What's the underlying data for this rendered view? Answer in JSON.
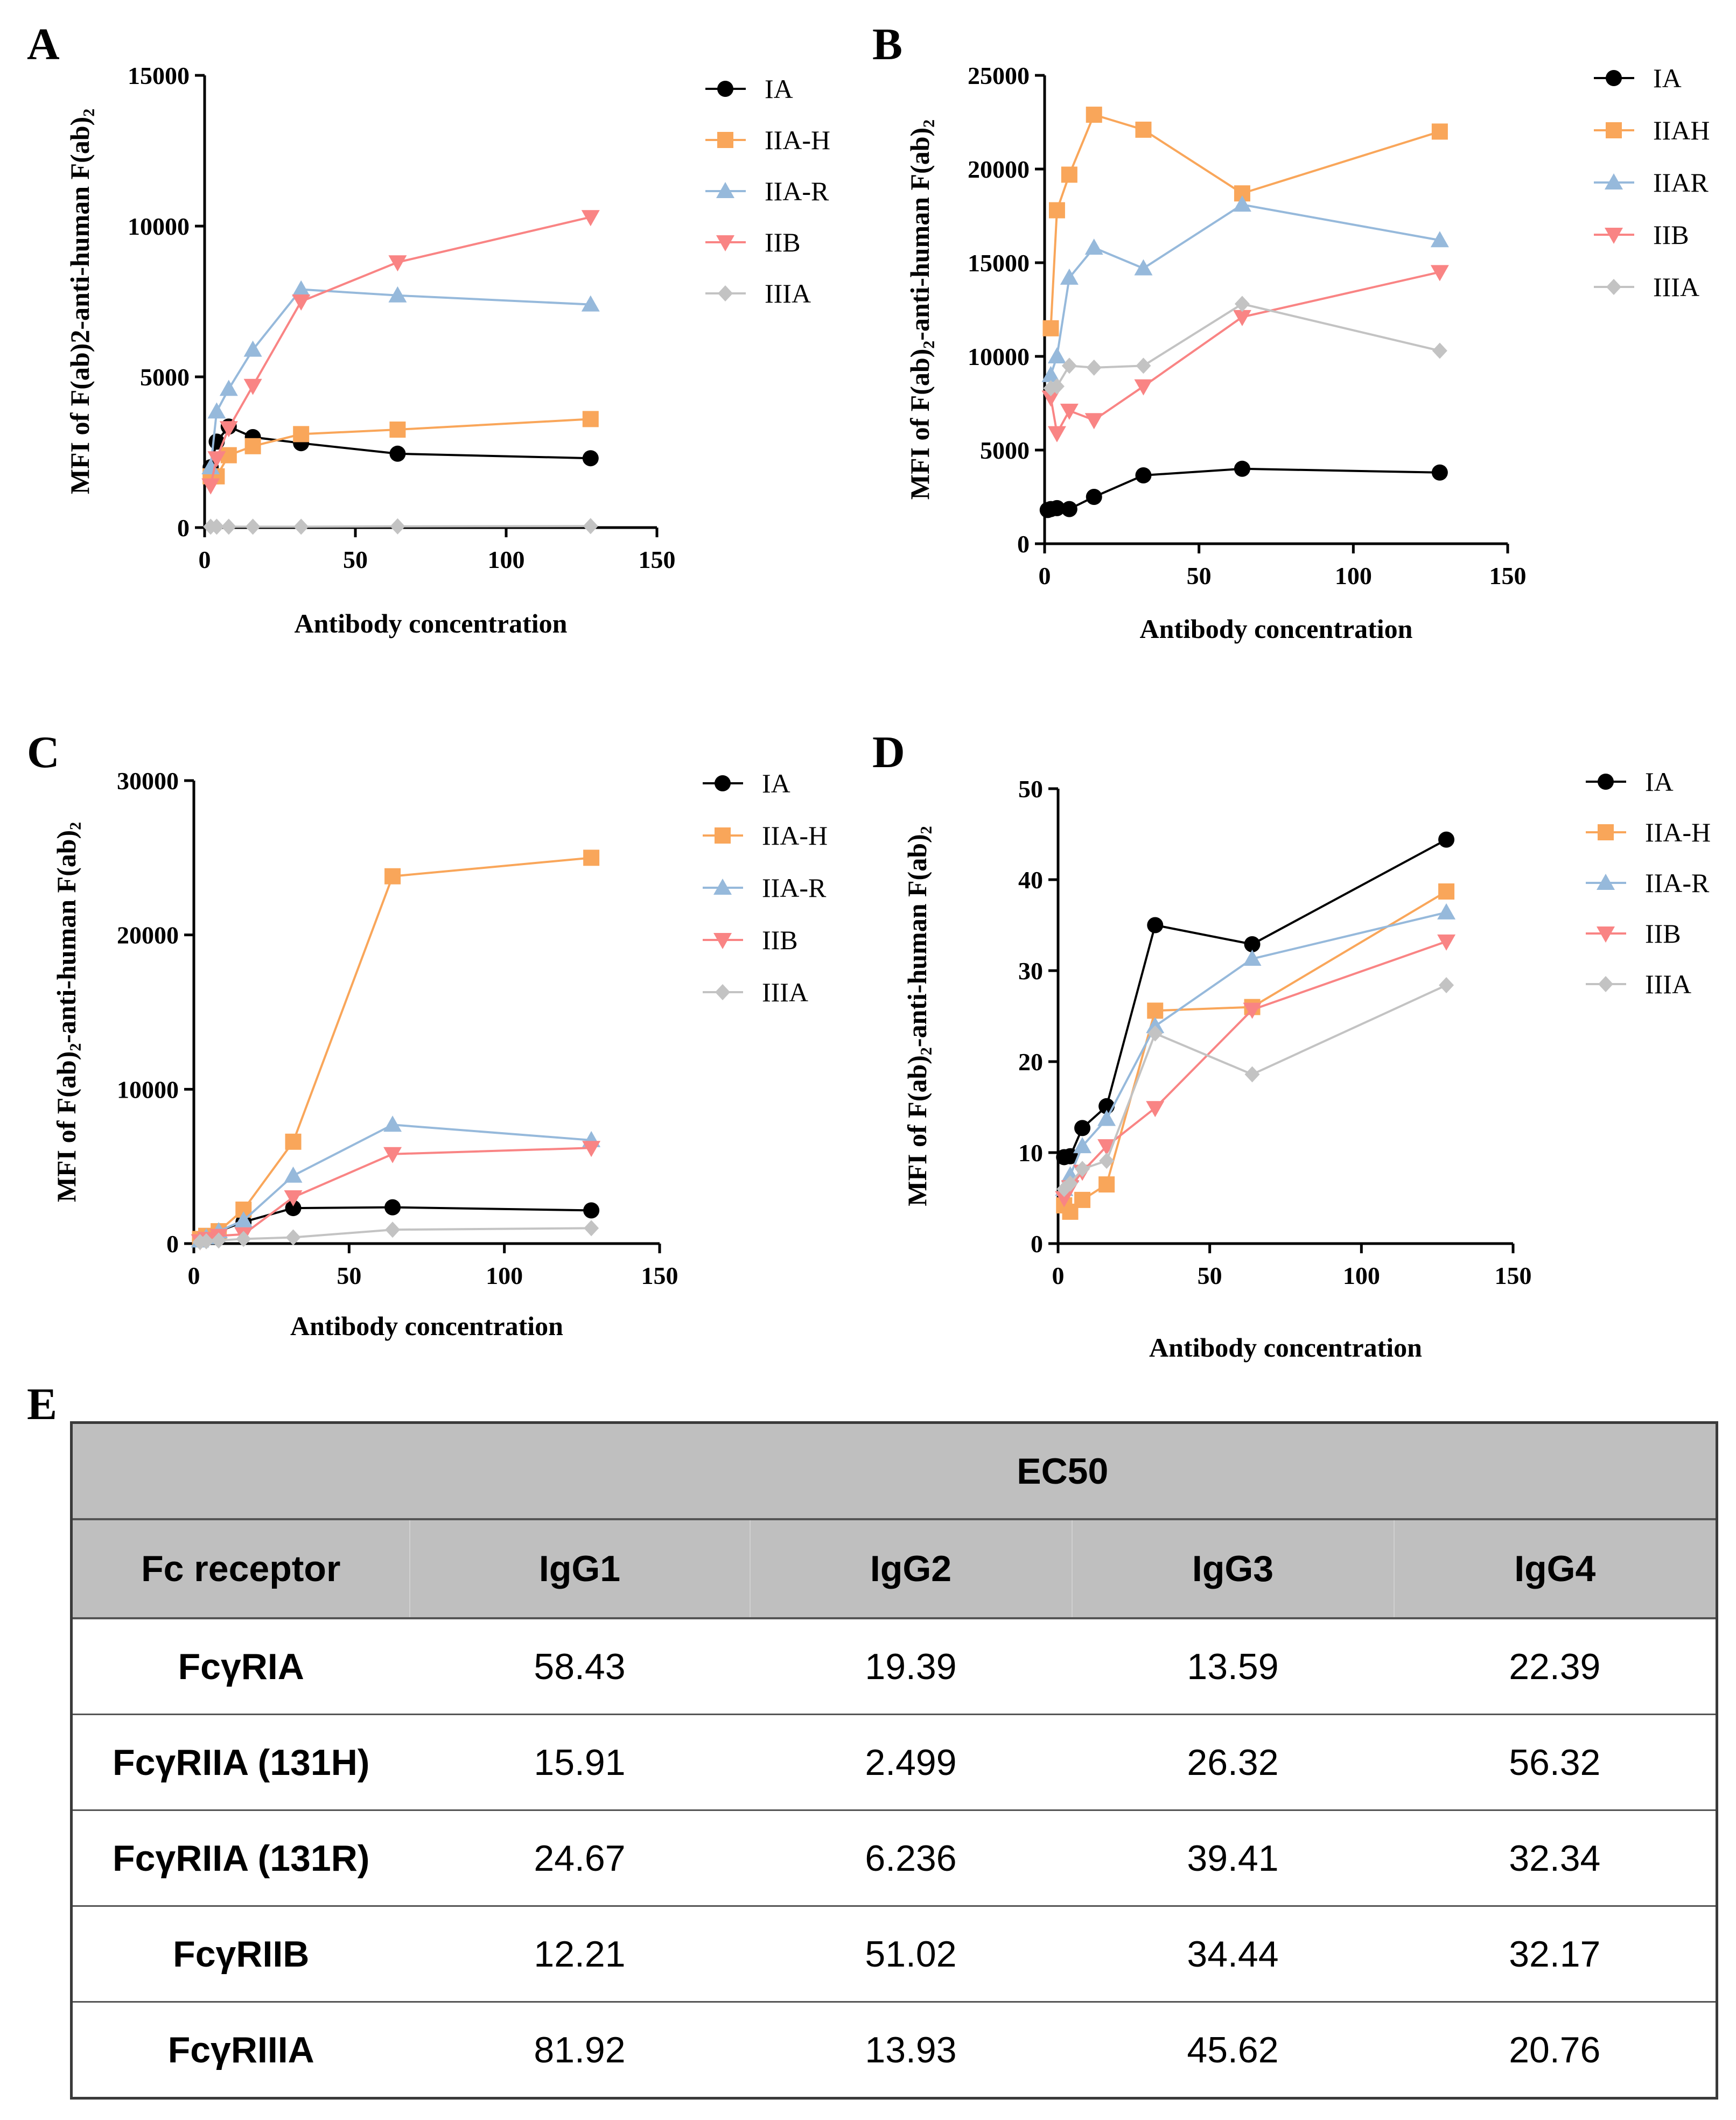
{
  "chart_data": [
    {
      "type": "line",
      "panel": "A",
      "title": "",
      "xlabel": "Antibody concentration",
      "ylabel": "MFI of F(ab)2-anti-human F(ab)₂",
      "xlim": [
        0,
        150
      ],
      "ylim": [
        0,
        15000
      ],
      "xticks": [
        0,
        50,
        100,
        150
      ],
      "yticks": [
        0,
        5000,
        10000,
        15000
      ],
      "legend_position": "top-right",
      "series": [
        {
          "name": "IA",
          "color": "#000000",
          "marker": "circle",
          "x": [
            2,
            4,
            8,
            16,
            32,
            64,
            128
          ],
          "y": [
            2000,
            2850,
            3350,
            3000,
            2800,
            2450,
            2300
          ]
        },
        {
          "name": "IIA-H",
          "color": "#f9a65a",
          "marker": "square",
          "x": [
            2,
            4,
            8,
            16,
            32,
            64,
            128
          ],
          "y": [
            1700,
            1700,
            2400,
            2700,
            3100,
            3250,
            3600
          ]
        },
        {
          "name": "IIA-R",
          "color": "#96b9db",
          "marker": "triangle-up",
          "x": [
            2,
            4,
            8,
            16,
            32,
            64,
            128
          ],
          "y": [
            2000,
            3850,
            4600,
            5900,
            7900,
            7700,
            7400
          ]
        },
        {
          "name": "IIB",
          "color": "#f98484",
          "marker": "triangle-down",
          "x": [
            2,
            4,
            8,
            16,
            32,
            64,
            128
          ],
          "y": [
            1400,
            2300,
            3300,
            4700,
            7500,
            8800,
            10300
          ]
        },
        {
          "name": "IIIA",
          "color": "#c3c3c3",
          "marker": "diamond",
          "x": [
            2,
            4,
            8,
            16,
            32,
            64,
            128
          ],
          "y": [
            30,
            30,
            30,
            30,
            30,
            40,
            50
          ]
        }
      ]
    },
    {
      "type": "line",
      "panel": "B",
      "title": "",
      "xlabel": "Antibody concentration",
      "ylabel": "MFI of F(ab)₂-anti-human F(ab)₂",
      "xlim": [
        0,
        150
      ],
      "ylim": [
        0,
        25000
      ],
      "xticks": [
        0,
        50,
        100,
        150
      ],
      "yticks": [
        0,
        5000,
        10000,
        15000,
        20000,
        25000
      ],
      "legend_position": "top-right",
      "series": [
        {
          "name": "IA",
          "color": "#000000",
          "marker": "circle",
          "x": [
            1,
            2,
            4,
            8,
            16,
            32,
            64,
            128
          ],
          "y": [
            1800,
            1850,
            1900,
            1850,
            2500,
            3650,
            4000,
            3800
          ]
        },
        {
          "name": "IIAH",
          "color": "#f9a65a",
          "marker": "square",
          "x": [
            2,
            4,
            8,
            16,
            32,
            64,
            128
          ],
          "y": [
            11500,
            17800,
            19700,
            22900,
            22100,
            18700,
            22000
          ]
        },
        {
          "name": "IIAR",
          "color": "#96b9db",
          "marker": "triangle-up",
          "x": [
            2,
            4,
            8,
            16,
            32,
            64,
            128
          ],
          "y": [
            9000,
            10000,
            14200,
            15800,
            14700,
            18100,
            16200
          ]
        },
        {
          "name": "IIB",
          "color": "#f98484",
          "marker": "triangle-down",
          "x": [
            2,
            4,
            8,
            16,
            32,
            64,
            128
          ],
          "y": [
            7800,
            5900,
            7100,
            6600,
            8400,
            12100,
            14500
          ]
        },
        {
          "name": "IIIA",
          "color": "#c3c3c3",
          "marker": "diamond",
          "x": [
            2,
            4,
            8,
            16,
            32,
            64,
            128
          ],
          "y": [
            8300,
            8400,
            9500,
            9400,
            9500,
            12800,
            10300
          ]
        }
      ]
    },
    {
      "type": "line",
      "panel": "C",
      "title": "",
      "xlabel": "Antibody concentration",
      "ylabel": "MFI of F(ab)₂-anti-human F(ab)₂",
      "xlim": [
        0,
        150
      ],
      "ylim": [
        0,
        30000
      ],
      "xticks": [
        0,
        50,
        100,
        150
      ],
      "yticks": [
        0,
        10000,
        20000,
        30000
      ],
      "legend_position": "top-right",
      "series": [
        {
          "name": "IA",
          "color": "#000000",
          "marker": "circle",
          "x": [
            2,
            4,
            8,
            16,
            32,
            64,
            128
          ],
          "y": [
            250,
            450,
            800,
            1400,
            2300,
            2350,
            2150
          ]
        },
        {
          "name": "IIA-H",
          "color": "#f9a65a",
          "marker": "square",
          "x": [
            2,
            4,
            8,
            16,
            32,
            64,
            128
          ],
          "y": [
            300,
            500,
            800,
            2200,
            6600,
            23800,
            25000
          ]
        },
        {
          "name": "IIA-R",
          "color": "#96b9db",
          "marker": "triangle-up",
          "x": [
            2,
            4,
            8,
            16,
            32,
            64,
            128
          ],
          "y": [
            200,
            400,
            800,
            1500,
            4400,
            7700,
            6700
          ]
        },
        {
          "name": "IIB",
          "color": "#f98484",
          "marker": "triangle-down",
          "x": [
            2,
            4,
            8,
            16,
            32,
            64,
            128
          ],
          "y": [
            150,
            300,
            500,
            600,
            3000,
            5800,
            6200
          ]
        },
        {
          "name": "IIIA",
          "color": "#c3c3c3",
          "marker": "diamond",
          "x": [
            2,
            4,
            8,
            16,
            32,
            64,
            128
          ],
          "y": [
            100,
            150,
            200,
            300,
            400,
            900,
            1000
          ]
        }
      ]
    },
    {
      "type": "line",
      "panel": "D",
      "title": "",
      "xlabel": "Antibody concentration",
      "ylabel": "MFI of F(ab)₂-anti-human F(ab)₂",
      "xlim": [
        0,
        150
      ],
      "ylim": [
        0,
        50
      ],
      "xticks": [
        0,
        50,
        100,
        150
      ],
      "yticks": [
        0,
        10,
        20,
        30,
        40,
        50
      ],
      "legend_position": "top-right",
      "series": [
        {
          "name": "IA",
          "color": "#000000",
          "marker": "circle",
          "x": [
            2,
            4,
            8,
            16,
            32,
            64,
            128
          ],
          "y": [
            9.5,
            9.6,
            12.7,
            15.1,
            35.0,
            32.9,
            44.4
          ]
        },
        {
          "name": "IIA-H",
          "color": "#f9a65a",
          "marker": "square",
          "x": [
            2,
            4,
            8,
            16,
            32,
            64,
            128
          ],
          "y": [
            4.2,
            3.5,
            4.8,
            6.5,
            25.6,
            26.0,
            38.7
          ]
        },
        {
          "name": "IIA-R",
          "color": "#96b9db",
          "marker": "triangle-up",
          "x": [
            2,
            4,
            8,
            16,
            32,
            64,
            128
          ],
          "y": [
            6.0,
            7.5,
            10.7,
            13.7,
            23.9,
            31.3,
            36.4
          ]
        },
        {
          "name": "IIB",
          "color": "#f98484",
          "marker": "triangle-down",
          "x": [
            2,
            4,
            8,
            16,
            32,
            64,
            128
          ],
          "y": [
            5.0,
            6.2,
            7.9,
            10.7,
            14.9,
            25.7,
            33.2
          ]
        },
        {
          "name": "IIIA",
          "color": "#c3c3c3",
          "marker": "diamond",
          "x": [
            2,
            4,
            8,
            16,
            32,
            64,
            128
          ],
          "y": [
            6.0,
            6.6,
            8.2,
            9.1,
            23.1,
            18.6,
            28.4
          ]
        }
      ]
    },
    {
      "type": "table",
      "panel": "E",
      "super_header": "EC50",
      "columns": [
        "Fc receptor",
        "IgG1",
        "IgG2",
        "IgG3",
        "IgG4"
      ],
      "rows": [
        [
          "FcγRIA",
          "58.43",
          "19.39",
          "13.59",
          "22.39"
        ],
        [
          "FcγRIIA (131H)",
          "15.91",
          "2.499",
          "26.32",
          "56.32"
        ],
        [
          "FcγRIIA (131R)",
          "24.67",
          "6.236",
          "39.41",
          "32.34"
        ],
        [
          "FcγRIIB",
          "12.21",
          "51.02",
          "34.44",
          "32.17"
        ],
        [
          "FcγRIIIA",
          "81.92",
          "13.93",
          "45.62",
          "20.76"
        ]
      ]
    }
  ]
}
